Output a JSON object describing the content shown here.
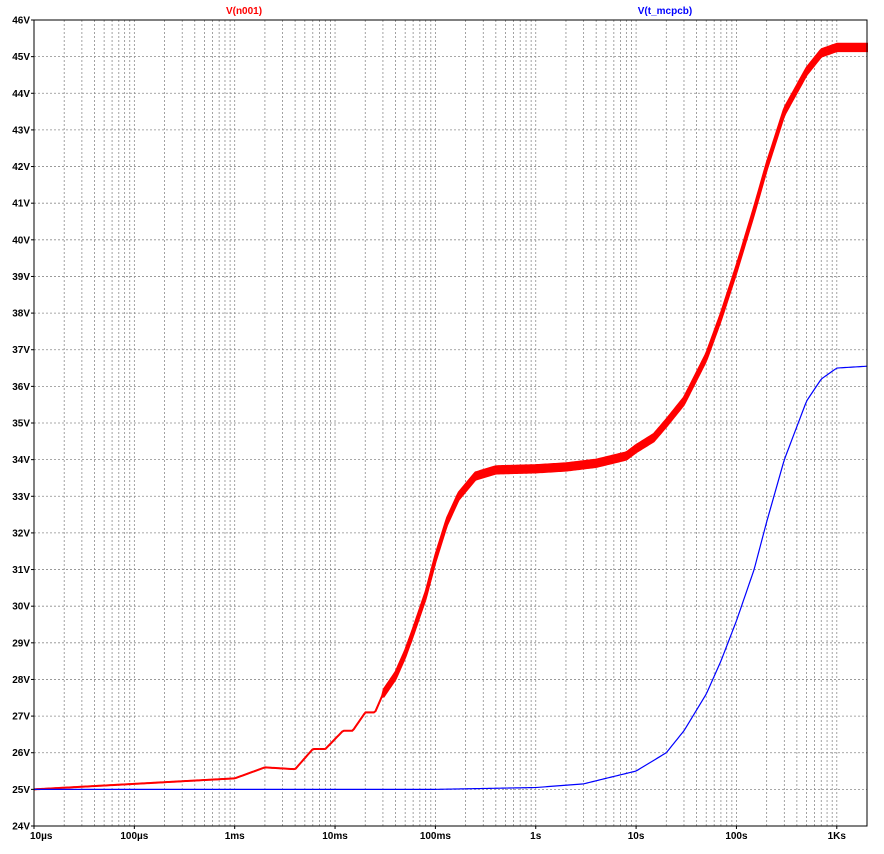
{
  "chart_data": {
    "type": "line",
    "x_scale": "log",
    "grid": true,
    "xlim": [
      "10µs",
      "2Ks"
    ],
    "ylim": [
      24,
      46
    ],
    "x_ticks": [
      {
        "t": 1e-05,
        "label": "10µs"
      },
      {
        "t": 0.0001,
        "label": "100µs"
      },
      {
        "t": 0.001,
        "label": "1ms"
      },
      {
        "t": 0.01,
        "label": "10ms"
      },
      {
        "t": 0.1,
        "label": "100ms"
      },
      {
        "t": 1,
        "label": "1s"
      },
      {
        "t": 10,
        "label": "10s"
      },
      {
        "t": 100,
        "label": "100s"
      },
      {
        "t": 1000,
        "label": "1Ks"
      }
    ],
    "y_ticks": [
      {
        "v": 24,
        "label": "24V"
      },
      {
        "v": 25,
        "label": "25V"
      },
      {
        "v": 26,
        "label": "26V"
      },
      {
        "v": 27,
        "label": "27V"
      },
      {
        "v": 28,
        "label": "28V"
      },
      {
        "v": 29,
        "label": "29V"
      },
      {
        "v": 30,
        "label": "30V"
      },
      {
        "v": 31,
        "label": "31V"
      },
      {
        "v": 32,
        "label": "32V"
      },
      {
        "v": 33,
        "label": "33V"
      },
      {
        "v": 34,
        "label": "34V"
      },
      {
        "v": 35,
        "label": "35V"
      },
      {
        "v": 36,
        "label": "36V"
      },
      {
        "v": 37,
        "label": "37V"
      },
      {
        "v": 38,
        "label": "38V"
      },
      {
        "v": 39,
        "label": "39V"
      },
      {
        "v": 40,
        "label": "40V"
      },
      {
        "v": 41,
        "label": "41V"
      },
      {
        "v": 42,
        "label": "42V"
      },
      {
        "v": 43,
        "label": "43V"
      },
      {
        "v": 44,
        "label": "44V"
      },
      {
        "v": 45,
        "label": "45V"
      },
      {
        "v": 46,
        "label": "46V"
      }
    ],
    "series": [
      {
        "name": "V(n001)",
        "color": "#ff0000",
        "points": [
          [
            1e-05,
            25.0
          ],
          [
            0.0001,
            25.15
          ],
          [
            0.001,
            25.3
          ],
          [
            0.002,
            25.6
          ],
          [
            0.004,
            25.55
          ],
          [
            0.006,
            26.1
          ],
          [
            0.008,
            26.1
          ],
          [
            0.012,
            26.6
          ],
          [
            0.015,
            26.6
          ],
          [
            0.02,
            27.1
          ],
          [
            0.025,
            27.1
          ],
          [
            0.03,
            27.6
          ],
          [
            0.04,
            28.1
          ],
          [
            0.05,
            28.7
          ],
          [
            0.06,
            29.3
          ],
          [
            0.08,
            30.3
          ],
          [
            0.1,
            31.3
          ],
          [
            0.13,
            32.3
          ],
          [
            0.17,
            33.0
          ],
          [
            0.25,
            33.55
          ],
          [
            0.4,
            33.72
          ],
          [
            1,
            33.75
          ],
          [
            2,
            33.8
          ],
          [
            4,
            33.9
          ],
          [
            8,
            34.1
          ],
          [
            10,
            34.3
          ],
          [
            15,
            34.6
          ],
          [
            20,
            35.0
          ],
          [
            30,
            35.6
          ],
          [
            50,
            36.8
          ],
          [
            70,
            37.9
          ],
          [
            100,
            39.2
          ],
          [
            150,
            40.8
          ],
          [
            200,
            42.0
          ],
          [
            300,
            43.5
          ],
          [
            500,
            44.6
          ],
          [
            700,
            45.1
          ],
          [
            1000,
            45.25
          ],
          [
            2000,
            45.25
          ]
        ],
        "band_half_width_from_t": 0.03,
        "band_half_width": 0.1
      },
      {
        "name": "V(t_mcpcb)",
        "color": "#0000ff",
        "points": [
          [
            1e-05,
            25.0
          ],
          [
            0.1,
            25.0
          ],
          [
            1,
            25.05
          ],
          [
            3,
            25.15
          ],
          [
            5,
            25.3
          ],
          [
            10,
            25.5
          ],
          [
            20,
            26.0
          ],
          [
            30,
            26.6
          ],
          [
            50,
            27.6
          ],
          [
            70,
            28.5
          ],
          [
            100,
            29.6
          ],
          [
            150,
            31.0
          ],
          [
            200,
            32.3
          ],
          [
            300,
            34.0
          ],
          [
            500,
            35.6
          ],
          [
            700,
            36.2
          ],
          [
            1000,
            36.5
          ],
          [
            2000,
            36.55
          ]
        ]
      }
    ]
  }
}
